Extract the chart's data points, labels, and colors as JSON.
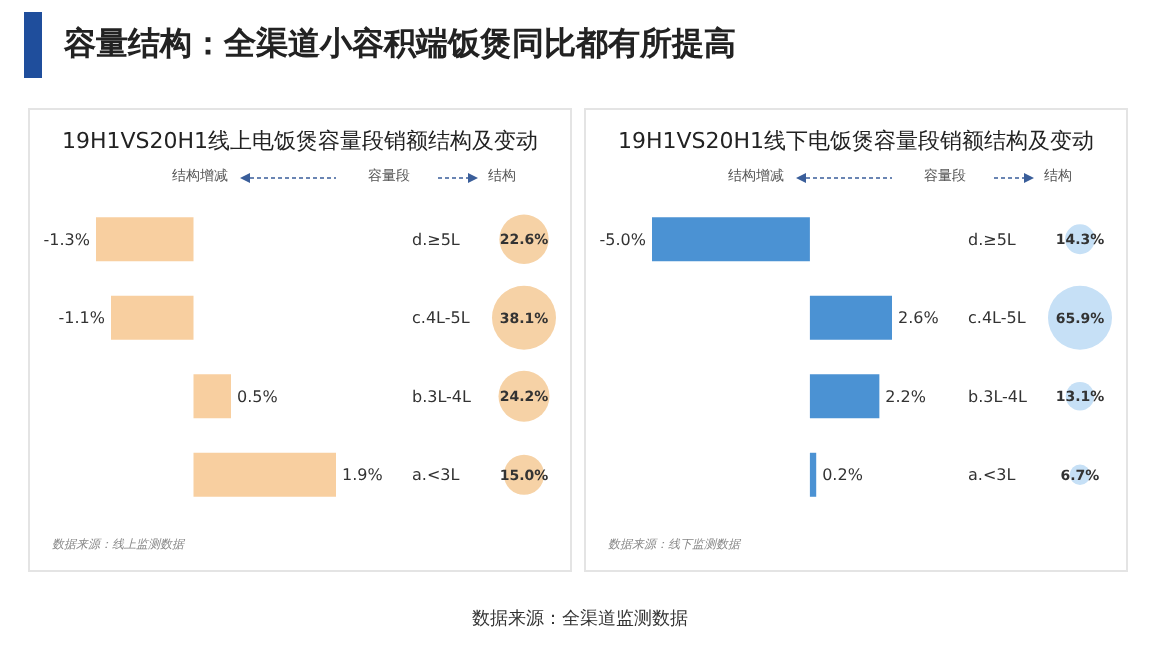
{
  "chart_data": [
    {
      "type": "bar",
      "orientation": "horizontal",
      "title": "19H1VS20H1线上电饭煲容量段销额结构及变动",
      "categories": [
        "d.≥5L",
        "c.4L-5L",
        "b.3L-4L",
        "a.<3L"
      ],
      "series": [
        {
          "color": "#f8cfa0",
          "values": [
            -1.3,
            -1.1,
            0.5,
            1.9
          ],
          "value_labels": [
            "-1.3%",
            "-1.1%",
            "0.5%",
            "1.9%"
          ]
        }
      ],
      "annotations": [
        "结构增减",
        "容量段",
        "结构",
        "数据来源：线上监测数据",
        "容量结构：全渠道小容积端饭煲同比都有所提高",
        "数据来源：全渠道监测数据"
      ]
    },
    {
      "type": "other",
      "colors": [
        "#f6d2a6",
        "#f6d2a6",
        "#f6d2a6",
        "#f6d2a6"
      ],
      "values": [
        22.6,
        38.1,
        24.2,
        15.0
      ],
      "value_labels": [
        "22.6%",
        "38.1%",
        "24.2%",
        "15.0%"
      ]
    },
    {
      "type": "bar",
      "orientation": "horizontal",
      "title": "19H1VS20H1线下电饭煲容量段销额结构及变动",
      "categories": [
        "d.≥5L",
        "c.4L-5L",
        "b.3L-4L",
        "a.<3L"
      ],
      "series": [
        {
          "color": "#4b92d3",
          "values": [
            -5.0,
            2.6,
            2.2,
            0.2
          ],
          "value_labels": [
            "-5.0%",
            "2.6%",
            "2.2%",
            "0.2%"
          ]
        }
      ],
      "annotations": [
        "结构增减",
        "容量段",
        "结构",
        "数据来源：线下监测数据"
      ]
    },
    {
      "type": "other",
      "colors": [
        "#c6e0f6",
        "#c6e0f6",
        "#c6e0f6",
        "#c6e0f6"
      ],
      "values": [
        14.3,
        65.9,
        13.1,
        6.7
      ],
      "value_labels": [
        "14.3%",
        "65.9%",
        "13.1%",
        "6.7%"
      ]
    }
  ]
}
